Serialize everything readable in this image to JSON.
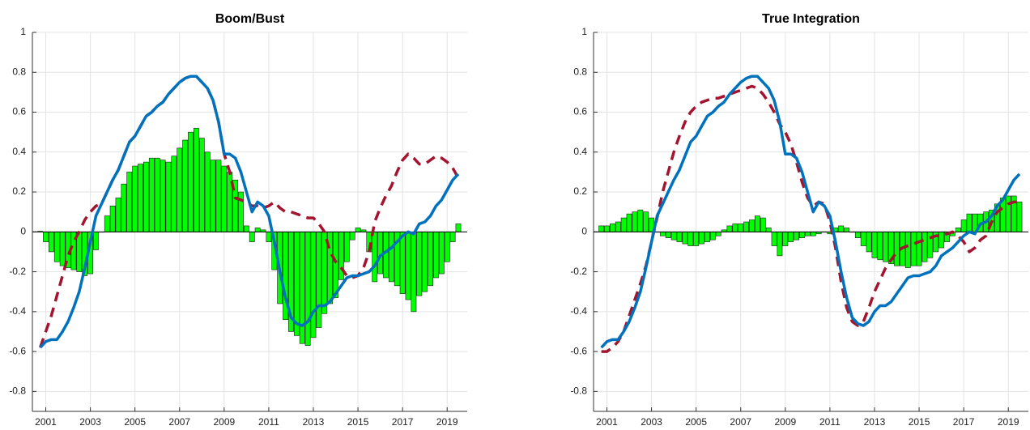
{
  "chart_data": [
    {
      "type": "bar_line",
      "title": "Boom/Bust",
      "x": [
        2000.75,
        2001,
        2001.25,
        2001.5,
        2001.75,
        2002,
        2002.25,
        2002.5,
        2002.75,
        2003,
        2003.25,
        2003.5,
        2003.75,
        2004,
        2004.25,
        2004.5,
        2004.75,
        2005,
        2005.25,
        2005.5,
        2005.75,
        2006,
        2006.25,
        2006.5,
        2006.75,
        2007,
        2007.25,
        2007.5,
        2007.75,
        2008,
        2008.25,
        2008.5,
        2008.75,
        2009,
        2009.25,
        2009.5,
        2009.75,
        2010,
        2010.25,
        2010.5,
        2010.75,
        2011,
        2011.25,
        2011.5,
        2011.75,
        2012,
        2012.25,
        2012.5,
        2012.75,
        2013,
        2013.25,
        2013.5,
        2013.75,
        2014,
        2014.25,
        2014.5,
        2014.75,
        2015,
        2015.25,
        2015.5,
        2015.75,
        2016,
        2016.25,
        2016.5,
        2016.75,
        2017,
        2017.25,
        2017.5,
        2017.75,
        2018,
        2018.25,
        2018.5,
        2018.75,
        2019,
        2019.25,
        2019.5
      ],
      "series": [
        {
          "kind": "bar",
          "color": "#00ff00",
          "values": [
            0.003,
            -0.05,
            -0.1,
            -0.15,
            -0.17,
            -0.18,
            -0.19,
            -0.2,
            -0.22,
            -0.21,
            -0.09,
            0.0,
            0.08,
            0.13,
            0.17,
            0.24,
            0.3,
            0.33,
            0.34,
            0.35,
            0.37,
            0.37,
            0.36,
            0.35,
            0.38,
            0.42,
            0.46,
            0.5,
            0.52,
            0.47,
            0.4,
            0.36,
            0.36,
            0.33,
            0.3,
            0.26,
            0.2,
            0.03,
            -0.05,
            0.02,
            0.01,
            -0.05,
            -0.19,
            -0.36,
            -0.44,
            -0.5,
            -0.52,
            -0.56,
            -0.57,
            -0.53,
            -0.48,
            -0.41,
            -0.36,
            -0.33,
            -0.24,
            -0.15,
            -0.04,
            0.02,
            0.01,
            -0.1,
            -0.25,
            -0.21,
            -0.23,
            -0.25,
            -0.27,
            -0.31,
            -0.34,
            -0.4,
            -0.32,
            -0.3,
            -0.27,
            -0.23,
            -0.21,
            -0.15,
            -0.05,
            0.04
          ]
        },
        {
          "kind": "dashed-line",
          "color": "#a2142f",
          "values": [
            -0.58,
            -0.5,
            -0.42,
            -0.32,
            -0.22,
            -0.12,
            -0.05,
            0,
            0.06,
            0.1,
            0.13,
            0.14,
            0.2,
            0.26,
            0.31,
            0.38,
            0.45,
            0.48,
            0.53,
            0.58,
            0.6,
            0.63,
            0.65,
            0.69,
            0.72,
            0.75,
            0.77,
            0.78,
            0.78,
            0.75,
            0.72,
            0.66,
            0.55,
            0.39,
            0.3,
            0.17,
            0.16,
            0.15,
            0.13,
            0.13,
            0.12,
            0.13,
            0.15,
            0.12,
            0.1,
            0.1,
            0.09,
            0.08,
            0.07,
            0.07,
            0.04,
            0.0,
            -0.1,
            -0.15,
            -0.18,
            -0.22,
            -0.23,
            -0.22,
            -0.18,
            -0.1,
            0.05,
            0.12,
            0.18,
            0.23,
            0.3,
            0.36,
            0.39,
            0.37,
            0.34,
            0.34,
            0.36,
            0.38,
            0.37,
            0.35,
            0.32,
            0.27
          ]
        },
        {
          "kind": "line",
          "color": "#0072bd",
          "values": [
            -0.58,
            -0.55,
            -0.54,
            -0.54,
            -0.5,
            -0.45,
            -0.38,
            -0.3,
            -0.18,
            -0.05,
            0.08,
            0.14,
            0.2,
            0.26,
            0.31,
            0.38,
            0.45,
            0.48,
            0.53,
            0.58,
            0.6,
            0.63,
            0.65,
            0.69,
            0.72,
            0.75,
            0.77,
            0.78,
            0.78,
            0.75,
            0.72,
            0.66,
            0.55,
            0.39,
            0.39,
            0.37,
            0.3,
            0.2,
            0.1,
            0.15,
            0.13,
            0.08,
            -0.05,
            -0.2,
            -0.33,
            -0.43,
            -0.46,
            -0.47,
            -0.45,
            -0.4,
            -0.37,
            -0.37,
            -0.35,
            -0.31,
            -0.27,
            -0.23,
            -0.22,
            -0.22,
            -0.21,
            -0.2,
            -0.17,
            -0.12,
            -0.1,
            -0.08,
            -0.05,
            -0.02,
            0,
            -0.01,
            0.04,
            0.05,
            0.08,
            0.13,
            0.16,
            0.21,
            0.26,
            0.29
          ]
        }
      ],
      "xlim": [
        2000.4,
        2019.9
      ],
      "xticks": [
        2001,
        2003,
        2005,
        2007,
        2009,
        2011,
        2013,
        2015,
        2017,
        2019
      ],
      "ylim": [
        -0.9,
        1
      ],
      "yticks": [
        -0.8,
        -0.6,
        -0.4,
        -0.2,
        0,
        0.2,
        0.4,
        0.6,
        0.8,
        1
      ],
      "grid": true
    },
    {
      "type": "bar_line",
      "title": "True Integration",
      "x": [
        2000.75,
        2001,
        2001.25,
        2001.5,
        2001.75,
        2002,
        2002.25,
        2002.5,
        2002.75,
        2003,
        2003.25,
        2003.5,
        2003.75,
        2004,
        2004.25,
        2004.5,
        2004.75,
        2005,
        2005.25,
        2005.5,
        2005.75,
        2006,
        2006.25,
        2006.5,
        2006.75,
        2007,
        2007.25,
        2007.5,
        2007.75,
        2008,
        2008.25,
        2008.5,
        2008.75,
        2009,
        2009.25,
        2009.5,
        2009.75,
        2010,
        2010.25,
        2010.5,
        2010.75,
        2011,
        2011.25,
        2011.5,
        2011.75,
        2012,
        2012.25,
        2012.5,
        2012.75,
        2013,
        2013.25,
        2013.5,
        2013.75,
        2014,
        2014.25,
        2014.5,
        2014.75,
        2015,
        2015.25,
        2015.5,
        2015.75,
        2016,
        2016.25,
        2016.5,
        2016.75,
        2017,
        2017.25,
        2017.5,
        2017.75,
        2018,
        2018.25,
        2018.5,
        2018.75,
        2019,
        2019.25,
        2019.5
      ],
      "series": [
        {
          "kind": "bar",
          "color": "#00ff00",
          "values": [
            0.03,
            0.03,
            0.04,
            0.05,
            0.07,
            0.09,
            0.1,
            0.11,
            0.1,
            0.07,
            0.0,
            -0.02,
            -0.03,
            -0.04,
            -0.05,
            -0.06,
            -0.07,
            -0.07,
            -0.06,
            -0.05,
            -0.04,
            -0.02,
            0.01,
            0.03,
            0.04,
            0.04,
            0.05,
            0.06,
            0.08,
            0.07,
            0.02,
            -0.07,
            -0.12,
            -0.07,
            -0.05,
            -0.04,
            -0.03,
            -0.02,
            -0.02,
            -0.01,
            0.0,
            -0.01,
            0.02,
            0.03,
            0.02,
            0.0,
            -0.03,
            -0.07,
            -0.1,
            -0.13,
            -0.14,
            -0.15,
            -0.16,
            -0.17,
            -0.17,
            -0.18,
            -0.17,
            -0.17,
            -0.15,
            -0.13,
            -0.1,
            -0.08,
            -0.05,
            -0.02,
            0.02,
            0.06,
            0.09,
            0.09,
            0.09,
            0.1,
            0.11,
            0.14,
            0.17,
            0.18,
            0.18,
            0.15
          ]
        },
        {
          "kind": "dashed-line",
          "color": "#a2142f",
          "values": [
            -0.6,
            -0.6,
            -0.58,
            -0.55,
            -0.5,
            -0.42,
            -0.34,
            -0.26,
            -0.17,
            -0.05,
            0.07,
            0.2,
            0.3,
            0.4,
            0.48,
            0.55,
            0.6,
            0.63,
            0.65,
            0.66,
            0.67,
            0.67,
            0.68,
            0.69,
            0.7,
            0.71,
            0.72,
            0.73,
            0.72,
            0.69,
            0.65,
            0.6,
            0.54,
            0.5,
            0.44,
            0.35,
            0.25,
            0.17,
            0.13,
            0.15,
            0.14,
            0.05,
            -0.08,
            -0.25,
            -0.38,
            -0.45,
            -0.47,
            -0.45,
            -0.38,
            -0.3,
            -0.24,
            -0.18,
            -0.14,
            -0.1,
            -0.08,
            -0.07,
            -0.06,
            -0.05,
            -0.04,
            -0.03,
            -0.02,
            -0.02,
            -0.01,
            0,
            -0.02,
            -0.05,
            -0.1,
            -0.08,
            -0.04,
            -0.02,
            0.05,
            0.1,
            0.12,
            0.14,
            0.15,
            0.15
          ]
        },
        {
          "kind": "line",
          "color": "#0072bd",
          "values": [
            -0.58,
            -0.55,
            -0.54,
            -0.54,
            -0.5,
            -0.45,
            -0.38,
            -0.3,
            -0.18,
            -0.05,
            0.08,
            0.14,
            0.2,
            0.26,
            0.31,
            0.38,
            0.45,
            0.48,
            0.53,
            0.58,
            0.6,
            0.63,
            0.65,
            0.69,
            0.72,
            0.75,
            0.77,
            0.78,
            0.78,
            0.75,
            0.72,
            0.66,
            0.55,
            0.39,
            0.39,
            0.37,
            0.3,
            0.2,
            0.1,
            0.15,
            0.13,
            0.08,
            -0.05,
            -0.2,
            -0.33,
            -0.43,
            -0.46,
            -0.47,
            -0.45,
            -0.4,
            -0.37,
            -0.37,
            -0.35,
            -0.31,
            -0.27,
            -0.23,
            -0.22,
            -0.22,
            -0.21,
            -0.2,
            -0.17,
            -0.12,
            -0.1,
            -0.08,
            -0.05,
            -0.02,
            0,
            -0.01,
            0.04,
            0.05,
            0.08,
            0.13,
            0.16,
            0.21,
            0.26,
            0.29
          ]
        }
      ],
      "xlim": [
        2000.4,
        2019.9
      ],
      "xticks": [
        2001,
        2003,
        2005,
        2007,
        2009,
        2011,
        2013,
        2015,
        2017,
        2019
      ],
      "ylim": [
        -0.9,
        1
      ],
      "yticks": [
        -0.8,
        -0.6,
        -0.4,
        -0.2,
        0,
        0.2,
        0.4,
        0.6,
        0.8,
        1
      ],
      "grid": true
    }
  ]
}
